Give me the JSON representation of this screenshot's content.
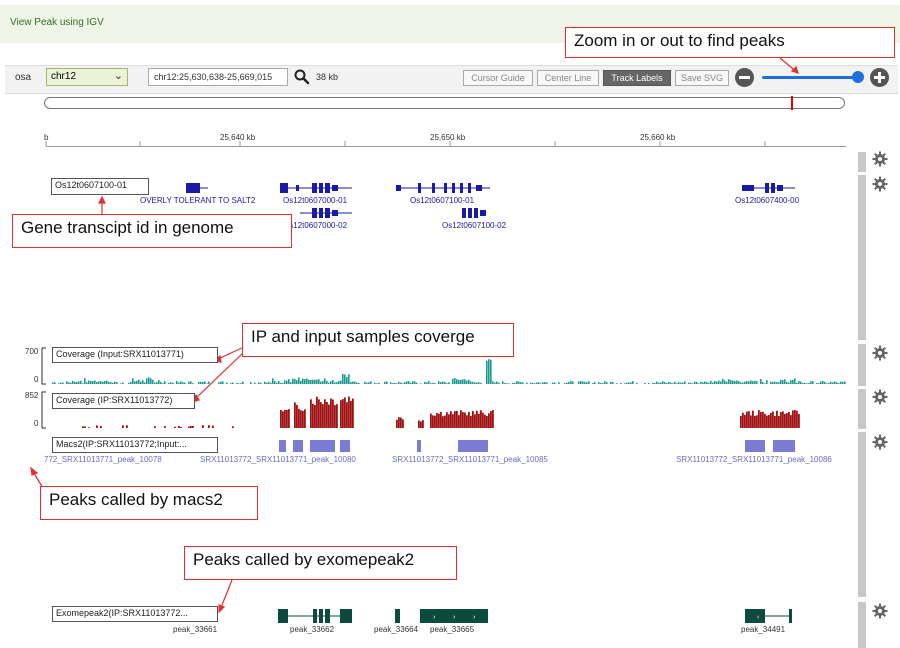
{
  "header": {
    "title": "View Peak using IGV"
  },
  "toolbar": {
    "genome": "osa",
    "chromosome": "chr12",
    "locus": "chr12:25,630,638-25,669,015",
    "width": "38 kb",
    "buttons": {
      "cursor_guide": "Cursor Guide",
      "center_line": "Center Line",
      "track_labels": "Track Labels",
      "save_svg": "Save SVG"
    },
    "zoom_level": 0.9
  },
  "ruler": {
    "ticks": [
      "b",
      "25,640 kb",
      "25,650 kb",
      "25,660 kb"
    ]
  },
  "tracks": {
    "genes": {
      "label": "Os12t0607100-01",
      "names": [
        "OVERLY TOLERANT TO SALT2",
        "Os12t0607000-01",
        "Os12t0607000-02",
        "Os12t0607100-01",
        "Os12t0607100-02",
        "Os12t0607400-00"
      ]
    },
    "input": {
      "label": "Coverage (Input:SRX11013771)",
      "max": "700",
      "min": "0"
    },
    "ip": {
      "label": "Coverage (IP:SRX11013772)",
      "max": "852",
      "min": "0"
    },
    "macs2": {
      "label": "Macs2(IP:SRX11013772;Input:...",
      "peaks": [
        "772_SRX11013771_peak_10078",
        "SRX11013772_SRX11013771_peak_10080",
        "SRX11013772_SRX11013771_peak_10085",
        "SRX11013772_SRX11013771_peak_10086"
      ]
    },
    "exome": {
      "label": "Exomepeak2(IP:SRX11013772...",
      "peaks": [
        "peak_33661",
        "peak_33662",
        "peak_33664",
        "peak_33665",
        "peak_34491"
      ]
    }
  },
  "annotations": {
    "zoom": "Zoom in or out to find peaks",
    "gene": "Gene transcipt id in genome",
    "coverage": "IP and input samples coverge",
    "macs2": "Peaks called by macs2",
    "exome": "Peaks called by exomepeak2"
  },
  "colors": {
    "gene": "#1a1aa6",
    "input": "#1a9a8f",
    "ip": "#a01010",
    "macs2": "#7b7bd4",
    "exome": "#0d4a40",
    "callout_border": "#e03030"
  }
}
